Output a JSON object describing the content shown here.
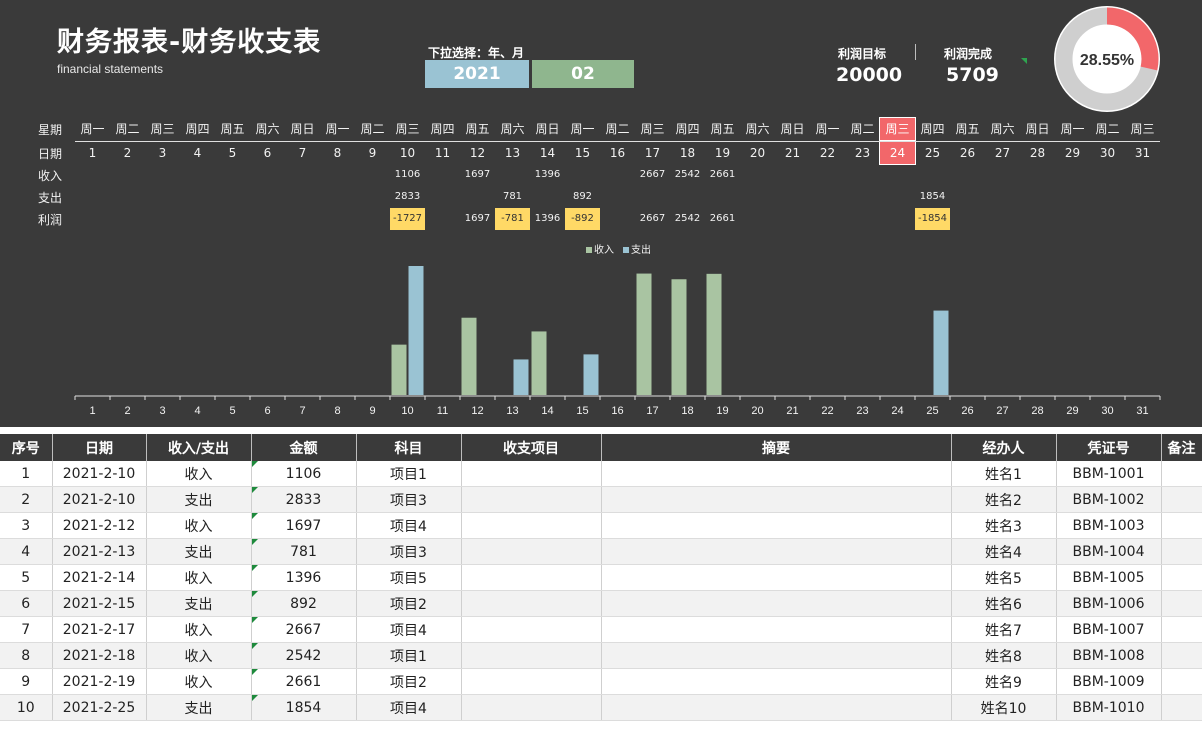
{
  "header": {
    "title": "财务报表-财务收支表",
    "subtitle": "financial statements",
    "dropdown_label": "下拉选择：年、月",
    "year": "2021",
    "month": "02",
    "profit_target_label": "利润目标",
    "profit_target_value": "20000",
    "profit_done_label": "利润完成",
    "profit_done_value": "5709",
    "completion_percent": "28.55%",
    "completion_fraction": 0.2855
  },
  "calendar": {
    "row_labels": [
      "星期",
      "日期",
      "收入",
      "支出",
      "利润"
    ],
    "weekdays": [
      "周一",
      "周二",
      "周三",
      "周四",
      "周五",
      "周六",
      "周日",
      "周一",
      "周二",
      "周三",
      "周四",
      "周五",
      "周六",
      "周日",
      "周一",
      "周二",
      "周三",
      "周四",
      "周五",
      "周六",
      "周日",
      "周一",
      "周二",
      "周三",
      "周四",
      "周五",
      "周六",
      "周日",
      "周一",
      "周二",
      "周三"
    ],
    "days": [
      "1",
      "2",
      "3",
      "4",
      "5",
      "6",
      "7",
      "8",
      "9",
      "10",
      "11",
      "12",
      "13",
      "14",
      "15",
      "16",
      "17",
      "18",
      "19",
      "20",
      "21",
      "22",
      "23",
      "24",
      "25",
      "26",
      "27",
      "28",
      "29",
      "30",
      "31"
    ],
    "today_index": 23,
    "income": {
      "10": "1106",
      "12": "1697",
      "14": "1396",
      "17": "2667",
      "18": "2542",
      "19": "2661"
    },
    "expense": {
      "10": "2833",
      "13": "781",
      "15": "892",
      "25": "1854"
    },
    "profit": {
      "10": "-1727",
      "12": "1697",
      "13": "-781",
      "14": "1396",
      "15": "-892",
      "17": "2667",
      "18": "2542",
      "19": "2661",
      "25": "-1854"
    }
  },
  "chart_data": {
    "type": "bar",
    "categories": [
      "1",
      "2",
      "3",
      "4",
      "5",
      "6",
      "7",
      "8",
      "9",
      "10",
      "11",
      "12",
      "13",
      "14",
      "15",
      "16",
      "17",
      "18",
      "19",
      "20",
      "21",
      "22",
      "23",
      "24",
      "25",
      "26",
      "27",
      "28",
      "29",
      "30",
      "31"
    ],
    "series": [
      {
        "name": "收入",
        "color": "#a9c4a2",
        "values": [
          0,
          0,
          0,
          0,
          0,
          0,
          0,
          0,
          0,
          1106,
          0,
          1697,
          0,
          1396,
          0,
          0,
          2667,
          2542,
          2661,
          0,
          0,
          0,
          0,
          0,
          0,
          0,
          0,
          0,
          0,
          0,
          0
        ]
      },
      {
        "name": "支出",
        "color": "#9ac3d3",
        "values": [
          0,
          0,
          0,
          0,
          0,
          0,
          0,
          0,
          0,
          2833,
          0,
          0,
          781,
          0,
          892,
          0,
          0,
          0,
          0,
          0,
          0,
          0,
          0,
          0,
          1854,
          0,
          0,
          0,
          0,
          0,
          0
        ]
      }
    ],
    "legend": "top-center",
    "ylim": [
      0,
      2833
    ],
    "grid": false
  },
  "table": {
    "headers": [
      "序号",
      "日期",
      "收入/支出",
      "金额",
      "科目",
      "收支项目",
      "摘要",
      "经办人",
      "凭证号",
      "备注"
    ],
    "rows": [
      [
        "1",
        "2021-2-10",
        "收入",
        "1106",
        "项目1",
        "",
        "",
        "姓名1",
        "BBM-1001",
        ""
      ],
      [
        "2",
        "2021-2-10",
        "支出",
        "2833",
        "项目3",
        "",
        "",
        "姓名2",
        "BBM-1002",
        ""
      ],
      [
        "3",
        "2021-2-12",
        "收入",
        "1697",
        "项目4",
        "",
        "",
        "姓名3",
        "BBM-1003",
        ""
      ],
      [
        "4",
        "2021-2-13",
        "支出",
        "781",
        "项目3",
        "",
        "",
        "姓名4",
        "BBM-1004",
        ""
      ],
      [
        "5",
        "2021-2-14",
        "收入",
        "1396",
        "项目5",
        "",
        "",
        "姓名5",
        "BBM-1005",
        ""
      ],
      [
        "6",
        "2021-2-15",
        "支出",
        "892",
        "项目2",
        "",
        "",
        "姓名6",
        "BBM-1006",
        ""
      ],
      [
        "7",
        "2021-2-17",
        "收入",
        "2667",
        "项目4",
        "",
        "",
        "姓名7",
        "BBM-1007",
        ""
      ],
      [
        "8",
        "2021-2-18",
        "收入",
        "2542",
        "项目1",
        "",
        "",
        "姓名8",
        "BBM-1008",
        ""
      ],
      [
        "9",
        "2021-2-19",
        "收入",
        "2661",
        "项目2",
        "",
        "",
        "姓名9",
        "BBM-1009",
        ""
      ],
      [
        "10",
        "2021-2-25",
        "支出",
        "1854",
        "项目4",
        "",
        "",
        "姓名10",
        "BBM-1010",
        ""
      ]
    ]
  }
}
